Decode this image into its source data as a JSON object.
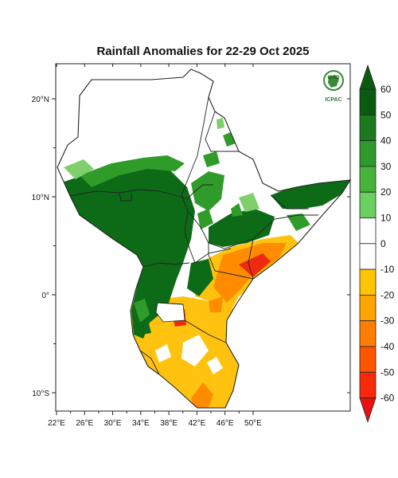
{
  "title": "Rainfall Anomalies for 22-29 Oct 2025",
  "logo": {
    "org_top": "IGAD",
    "org_bottom": "ICPAC"
  },
  "lat_ticks": [
    {
      "label": "20°N",
      "lat": 20
    },
    {
      "label": "10°N",
      "lat": 10
    },
    {
      "label": "0°",
      "lat": 0
    },
    {
      "label": "10°S",
      "lat": -10
    }
  ],
  "lon_ticks": [
    {
      "label": "22°E",
      "lon": 22
    },
    {
      "label": "26°E",
      "lon": 26
    },
    {
      "label": "30°E",
      "lon": 30
    },
    {
      "label": "34°E",
      "lon": 34
    },
    {
      "label": "38°E",
      "lon": 38
    },
    {
      "label": "42°E",
      "lon": 42
    },
    {
      "label": "46°E",
      "lon": 46
    },
    {
      "label": "50°E",
      "lon": 50
    }
  ],
  "colorbar": {
    "labels": [
      "60",
      "50",
      "40",
      "30",
      "20",
      "10",
      "0",
      "-10",
      "-20",
      "-30",
      "-40",
      "-50",
      "-60"
    ],
    "colors": [
      "#0a5a12",
      "#1c7a1e",
      "#2e9a2c",
      "#46b43a",
      "#6ad060",
      "#ffffff",
      "#ffffff",
      "#ffc400",
      "#ffa400",
      "#ff7d00",
      "#ff5500",
      "#f82a0a"
    ],
    "top_arrow": "#0a5a12",
    "bottom_arrow": "#e81010"
  },
  "map_colors": {
    "dark_green": "#0d6b17",
    "green": "#2f9c2a",
    "light_green": "#7fd06a",
    "yellow": "#ffc20e",
    "orange": "#ff8c00",
    "red": "#ee2a10",
    "background": "#ffffff"
  }
}
